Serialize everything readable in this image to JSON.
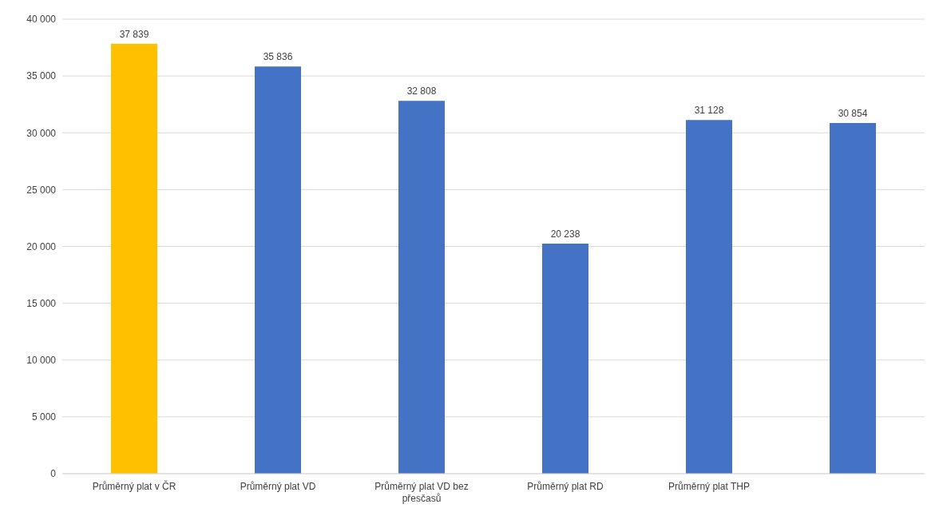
{
  "chart_data": {
    "type": "bar",
    "categories": [
      "Průměrný plat v ČR",
      "Průměrný plat VD",
      "Průměrný plat VD bez přesčasů",
      "Průměrný plat RD",
      "Průměrný plat THP",
      null
    ],
    "values": [
      37839,
      35836,
      32808,
      20238,
      31128,
      30854
    ],
    "value_labels": [
      "37 839",
      "35 836",
      "32 808",
      "20 238",
      "31 128",
      "30 854"
    ],
    "colors": [
      "#ffc000",
      "#4472c4",
      "#4472c4",
      "#4472c4",
      "#4472c4",
      "#4472c4"
    ],
    "ylim": [
      0,
      40000
    ],
    "yticks": [
      {
        "value": 0,
        "label": "0"
      },
      {
        "value": 5000,
        "label": "5 000"
      },
      {
        "value": 10000,
        "label": "10 000"
      },
      {
        "value": 15000,
        "label": "15 000"
      },
      {
        "value": 20000,
        "label": "20 000"
      },
      {
        "value": 25000,
        "label": "25 000"
      },
      {
        "value": 30000,
        "label": "30 000"
      },
      {
        "value": 35000,
        "label": "35 000"
      },
      {
        "value": 40000,
        "label": "40 000"
      }
    ],
    "grid": "y"
  }
}
